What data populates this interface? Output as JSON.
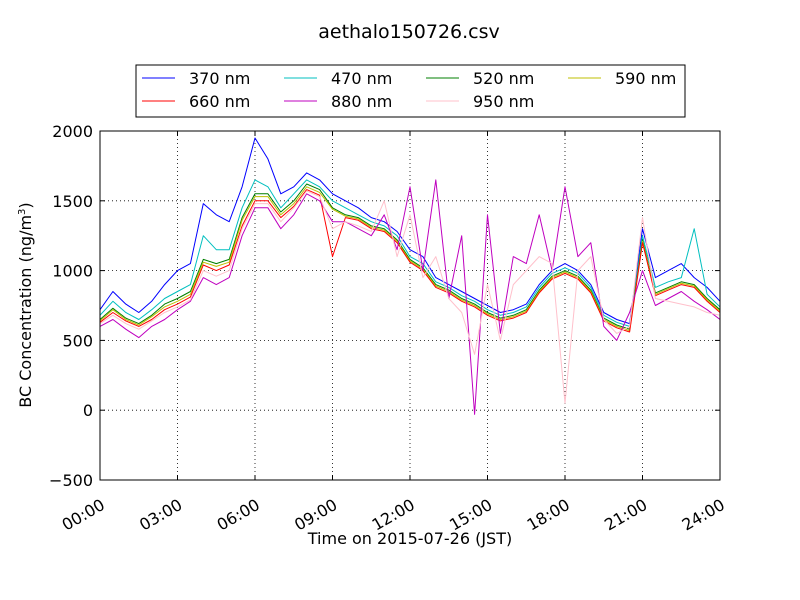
{
  "chart_data": {
    "type": "line",
    "title": "aethalo150726.csv",
    "xlabel": "Time on 2015-07-26 (JST)",
    "ylabel": "BC Concentration (ng/m",
    "ylabel_sup": "3",
    "ylabel_close": ")",
    "xlim": [
      "00:00",
      "24:00"
    ],
    "ylim": [
      -500,
      2000
    ],
    "xticks": [
      "00:00",
      "03:00",
      "06:00",
      "09:00",
      "12:00",
      "15:00",
      "18:00",
      "21:00",
      "24:00"
    ],
    "yticks": [
      -500,
      0,
      500,
      1000,
      1500,
      2000
    ],
    "grid": true,
    "legend": {
      "placement": "top",
      "columns": 4
    },
    "x": [
      "00:00",
      "00:30",
      "01:00",
      "01:30",
      "02:00",
      "02:30",
      "03:00",
      "03:30",
      "04:00",
      "04:30",
      "05:00",
      "05:30",
      "06:00",
      "06:30",
      "07:00",
      "07:30",
      "08:00",
      "08:30",
      "09:00",
      "09:30",
      "10:00",
      "10:30",
      "11:00",
      "11:30",
      "12:00",
      "12:30",
      "13:00",
      "13:30",
      "14:00",
      "14:30",
      "15:00",
      "15:30",
      "16:00",
      "16:30",
      "17:00",
      "17:30",
      "18:00",
      "18:30",
      "19:00",
      "19:30",
      "20:00",
      "20:30",
      "21:00",
      "21:30",
      "22:00",
      "22:30",
      "23:00",
      "23:30",
      "24:00"
    ],
    "series": [
      {
        "name": "370 nm",
        "color": "#0000ff",
        "values": [
          720,
          850,
          760,
          700,
          780,
          900,
          1000,
          1050,
          1480,
          1400,
          1350,
          1600,
          1950,
          1800,
          1550,
          1600,
          1700,
          1650,
          1550,
          1500,
          1450,
          1380,
          1350,
          1280,
          1150,
          1100,
          950,
          900,
          850,
          800,
          750,
          700,
          720,
          760,
          900,
          1000,
          1050,
          1000,
          900,
          700,
          650,
          620,
          1300,
          950,
          1000,
          1050,
          950,
          880,
          780
        ]
      },
      {
        "name": "470 nm",
        "color": "#00bfbf",
        "values": [
          680,
          780,
          700,
          650,
          720,
          800,
          850,
          900,
          1250,
          1150,
          1150,
          1450,
          1650,
          1600,
          1450,
          1550,
          1650,
          1600,
          1500,
          1450,
          1400,
          1350,
          1320,
          1250,
          1100,
          1050,
          920,
          880,
          820,
          780,
          720,
          680,
          700,
          740,
          880,
          980,
          1020,
          980,
          880,
          680,
          630,
          600,
          1250,
          880,
          920,
          950,
          1300,
          830,
          740
        ]
      },
      {
        "name": "520 nm",
        "color": "#007f00",
        "values": [
          650,
          730,
          660,
          620,
          680,
          760,
          800,
          850,
          1080,
          1050,
          1080,
          1380,
          1550,
          1550,
          1420,
          1500,
          1620,
          1580,
          1450,
          1400,
          1380,
          1320,
          1300,
          1220,
          1080,
          1020,
          900,
          860,
          800,
          760,
          700,
          660,
          680,
          720,
          860,
          960,
          1000,
          960,
          860,
          660,
          610,
          580,
          1220,
          840,
          880,
          920,
          900,
          800,
          720
        ]
      },
      {
        "name": "590 nm",
        "color": "#bfbf00",
        "values": [
          640,
          720,
          650,
          610,
          670,
          740,
          780,
          830,
          1060,
          1030,
          1060,
          1360,
          1530,
          1530,
          1400,
          1480,
          1600,
          1560,
          1440,
          1390,
          1370,
          1310,
          1290,
          1210,
          1070,
          1010,
          890,
          850,
          790,
          750,
          690,
          650,
          670,
          710,
          850,
          950,
          990,
          950,
          850,
          650,
          600,
          570,
          1210,
          830,
          870,
          910,
          890,
          790,
          710
        ]
      },
      {
        "name": "660 nm",
        "color": "#ff0000",
        "values": [
          630,
          700,
          640,
          600,
          650,
          720,
          760,
          810,
          1040,
          1000,
          1040,
          1320,
          1500,
          1500,
          1380,
          1460,
          1580,
          1540,
          1100,
          1380,
          1360,
          1300,
          1280,
          1200,
          1060,
          1000,
          880,
          840,
          780,
          740,
          680,
          640,
          660,
          700,
          840,
          940,
          980,
          940,
          840,
          640,
          590,
          560,
          1200,
          820,
          860,
          900,
          880,
          780,
          700
        ]
      },
      {
        "name": "880 nm",
        "color": "#bf00bf",
        "values": [
          600,
          650,
          580,
          520,
          600,
          650,
          720,
          780,
          950,
          900,
          950,
          1250,
          1450,
          1450,
          1300,
          1400,
          1550,
          1500,
          1350,
          1350,
          1300,
          1250,
          1400,
          1150,
          1600,
          1000,
          1650,
          800,
          1250,
          -30,
          1400,
          550,
          1100,
          1050,
          1400,
          1000,
          1600,
          1100,
          1200,
          600,
          500,
          700,
          1000,
          750,
          800,
          850,
          780,
          720,
          650
        ]
      },
      {
        "name": "950 nm",
        "color": "#ffc0cb",
        "values": [
          620,
          680,
          620,
          580,
          640,
          700,
          740,
          790,
          1000,
          960,
          1000,
          1300,
          1480,
          1480,
          1350,
          1450,
          1570,
          1530,
          1300,
          1350,
          1320,
          1280,
          1500,
          1100,
          1400,
          950,
          1100,
          800,
          700,
          400,
          900,
          500,
          900,
          1000,
          1100,
          1050,
          50,
          1000,
          1100,
          650,
          550,
          600,
          1380,
          800,
          780,
          760,
          740,
          700,
          680
        ]
      }
    ]
  }
}
